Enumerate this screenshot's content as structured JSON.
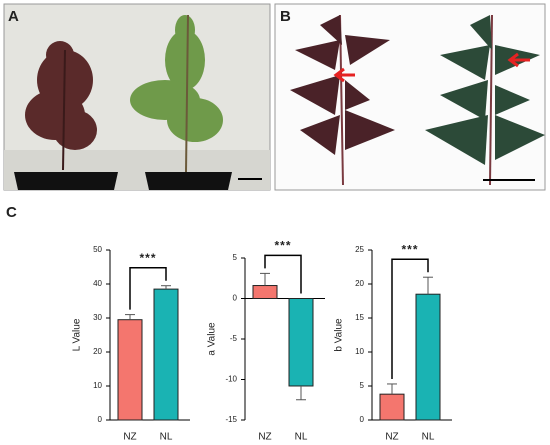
{
  "panel_labels": [
    "A",
    "B",
    "C"
  ],
  "chart_data": [
    {
      "type": "bar",
      "ylabel": "L Value",
      "categories": [
        "NZ",
        "NL"
      ],
      "values": [
        29.5,
        38.5
      ],
      "errors": [
        1.5,
        1
      ],
      "colors": [
        "#f4766e",
        "#1ab3b3"
      ],
      "ylim": [
        0,
        50
      ],
      "yticks": [
        0,
        10,
        20,
        30,
        40,
        50
      ],
      "annotation": "***"
    },
    {
      "type": "bar",
      "ylabel": "a Value",
      "categories": [
        "NZ",
        "NL"
      ],
      "values": [
        1.6,
        -10.8
      ],
      "errors": [
        1.5,
        1.7
      ],
      "colors": [
        "#f4766e",
        "#1ab3b3"
      ],
      "ylim": [
        -15,
        5
      ],
      "yticks": [
        -15,
        -10,
        -5,
        0,
        5
      ],
      "annotation": "***"
    },
    {
      "type": "bar",
      "ylabel": "b Value",
      "categories": [
        "NZ",
        "NL"
      ],
      "values": [
        3.8,
        18.5
      ],
      "errors": [
        1.5,
        2.5
      ],
      "colors": [
        "#f4766e",
        "#1ab3b3"
      ],
      "ylim": [
        0,
        25
      ],
      "yticks": [
        0,
        5,
        10,
        15,
        20,
        25
      ],
      "annotation": "***"
    }
  ]
}
